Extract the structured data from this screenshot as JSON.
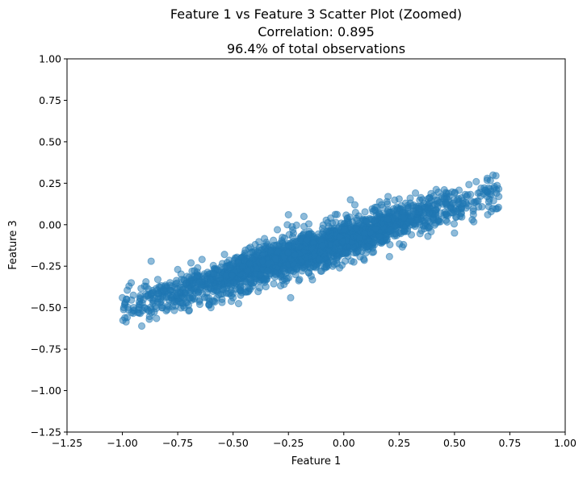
{
  "chart_data": {
    "type": "scatter",
    "title": "Feature 1 vs Feature 3 Scatter Plot (Zoomed)",
    "subtitle_lines": [
      "Correlation: 0.895",
      "96.4% of total observations"
    ],
    "xlabel": "Feature 1",
    "ylabel": "Feature 3",
    "xlim": [
      -1.25,
      1.0
    ],
    "ylim": [
      -1.25,
      1.0
    ],
    "xticks": [
      -1.25,
      -1.0,
      -0.75,
      -0.5,
      -0.25,
      0.0,
      0.25,
      0.5,
      0.75,
      1.0
    ],
    "xtick_labels": [
      "−1.25",
      "−1.00",
      "−0.75",
      "−0.50",
      "−0.25",
      "0.00",
      "0.25",
      "0.50",
      "0.75",
      "1.00"
    ],
    "yticks": [
      1.0,
      0.75,
      0.5,
      0.25,
      0.0,
      -0.25,
      -0.5,
      -0.75,
      -1.0,
      -1.25
    ],
    "ytick_labels": [
      "1.00",
      "0.75",
      "0.50",
      "0.25",
      "0.00",
      "−0.25",
      "−0.50",
      "−0.75",
      "−1.00",
      "−1.25"
    ],
    "grid": false,
    "point_color": "#1f77b4",
    "point_opacity": 0.5,
    "trend": {
      "description": "dense elongated point cloud",
      "x_range_observed": [
        -1.0,
        0.7
      ],
      "approx_slope": 0.42,
      "approx_intercept": -0.09,
      "approx_residual_spread": 0.055
    },
    "series": [
      {
        "points": [
          [
            -1.0,
            -0.44
          ],
          [
            -0.98,
            -0.45
          ],
          [
            -0.97,
            -0.37
          ],
          [
            -0.96,
            -0.35
          ],
          [
            -0.95,
            -0.52
          ],
          [
            -0.93,
            -0.53
          ],
          [
            -0.92,
            -0.48
          ],
          [
            -0.9,
            -0.5
          ],
          [
            -0.89,
            -0.43
          ],
          [
            -0.88,
            -0.52
          ],
          [
            -0.87,
            -0.22
          ],
          [
            -0.86,
            -0.46
          ],
          [
            -0.84,
            -0.33
          ],
          [
            -0.82,
            -0.5
          ],
          [
            -0.8,
            -0.38
          ],
          [
            -0.78,
            -0.44
          ],
          [
            -0.76,
            -0.49
          ],
          [
            -0.75,
            -0.27
          ],
          [
            -0.74,
            -0.41
          ],
          [
            -0.72,
            -0.5
          ],
          [
            -0.7,
            -0.52
          ],
          [
            -0.69,
            -0.23
          ],
          [
            -0.66,
            -0.26
          ],
          [
            -0.65,
            -0.48
          ],
          [
            -0.62,
            -0.36
          ],
          [
            -0.6,
            -0.5
          ],
          [
            -0.58,
            -0.27
          ],
          [
            -0.55,
            -0.45
          ],
          [
            -0.5,
            -0.44
          ],
          [
            -0.46,
            -0.41
          ],
          [
            -0.43,
            -0.4
          ],
          [
            -0.4,
            -0.12
          ],
          [
            -0.38,
            -0.38
          ],
          [
            -0.36,
            -0.13
          ],
          [
            -0.3,
            -0.03
          ],
          [
            -0.27,
            -0.36
          ],
          [
            -0.25,
            0.06
          ],
          [
            -0.24,
            -0.44
          ],
          [
            -0.2,
            -0.33
          ],
          [
            -0.18,
            0.05
          ],
          [
            -0.1,
            -0.28
          ],
          [
            -0.05,
            -0.25
          ],
          [
            0.03,
            0.15
          ],
          [
            0.05,
            0.12
          ],
          [
            0.1,
            -0.17
          ],
          [
            0.13,
            -0.14
          ],
          [
            0.17,
            0.12
          ],
          [
            0.2,
            0.17
          ],
          [
            0.27,
            -0.12
          ],
          [
            0.3,
            0.16
          ],
          [
            0.38,
            -0.07
          ],
          [
            0.44,
            0.17
          ],
          [
            0.5,
            -0.05
          ],
          [
            0.56,
            0.18
          ],
          [
            0.58,
            0.03
          ],
          [
            0.62,
            0.22
          ],
          [
            0.65,
            0.06
          ],
          [
            0.68,
            0.23
          ],
          [
            0.69,
            0.19
          ],
          [
            0.7,
            0.17
          ]
        ]
      }
    ]
  }
}
